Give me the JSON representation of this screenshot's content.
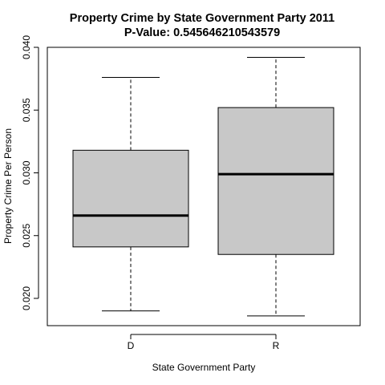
{
  "chart_data": {
    "type": "boxplot",
    "title": "Property Crime  by State Government Party  2011",
    "subtitle": "P-Value:  0.545646210543579",
    "xlabel": "State Government Party",
    "ylabel": "Property Crime  Per Person",
    "ylim": [
      0.018,
      0.04
    ],
    "yticks": [
      0.02,
      0.025,
      0.03,
      0.035,
      0.04
    ],
    "ytick_labels": [
      "0.020",
      "0.025",
      "0.030",
      "0.035",
      "0.040"
    ],
    "categories": [
      "D",
      "R"
    ],
    "boxes": [
      {
        "category": "D",
        "whisker_low": 0.019,
        "q1": 0.0241,
        "median": 0.0266,
        "q3": 0.0318,
        "whisker_high": 0.0376
      },
      {
        "category": "R",
        "whisker_low": 0.0186,
        "q1": 0.0235,
        "median": 0.0299,
        "q3": 0.0352,
        "whisker_high": 0.0392
      }
    ],
    "box_fill": "#c8c8c8",
    "grid": false
  }
}
